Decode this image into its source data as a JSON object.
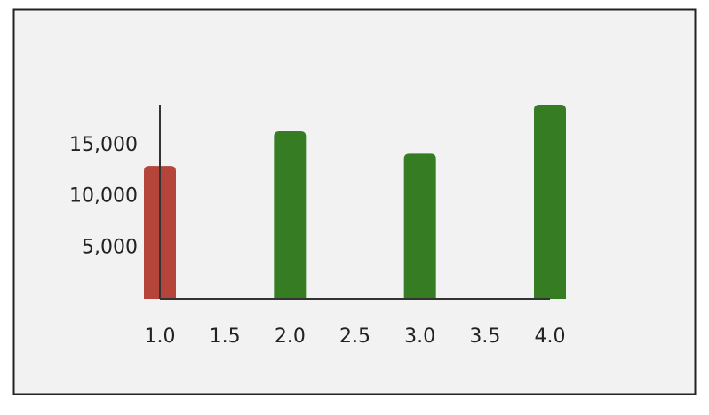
{
  "chart_data": {
    "type": "bar",
    "x": [
      1,
      2,
      3,
      4
    ],
    "values": [
      13000,
      16400,
      14200,
      19000
    ],
    "colors": [
      "#b5443a",
      "#367c23",
      "#367c23",
      "#367c23"
    ],
    "xlim": [
      1,
      4
    ],
    "xticks": [
      {
        "value": 1,
        "label": "1.0"
      },
      {
        "value": 1.5,
        "label": "1.5"
      },
      {
        "value": 2,
        "label": "2.0"
      },
      {
        "value": 2.5,
        "label": "2.5"
      },
      {
        "value": 3,
        "label": "3.0"
      },
      {
        "value": 3.5,
        "label": "3.5"
      },
      {
        "value": 4,
        "label": "4.0"
      }
    ],
    "ylim": [
      0,
      19000
    ],
    "yticks": [
      {
        "value": 5000,
        "label": "5,000"
      },
      {
        "value": 10000,
        "label": "10,000"
      },
      {
        "value": 15000,
        "label": "15,000"
      }
    ],
    "grid": false
  }
}
